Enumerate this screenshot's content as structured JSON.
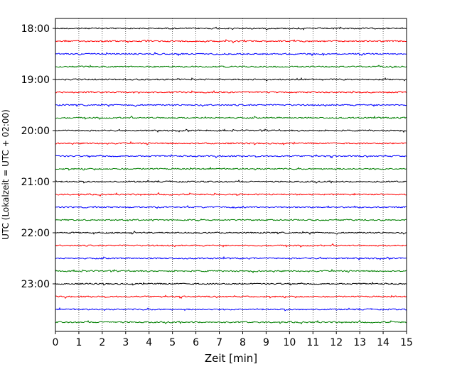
{
  "chart_data": {
    "type": "line",
    "title": "",
    "xlabel": "Zeit  [min]",
    "ylabel": "UTC (Lokalzeit = UTC + 02:00)",
    "xlim": [
      0,
      15
    ],
    "x_ticks": [
      0,
      1,
      2,
      3,
      4,
      5,
      6,
      7,
      8,
      9,
      10,
      11,
      12,
      13,
      14,
      15
    ],
    "y_tick_labels": [
      "18:00",
      "19:00",
      "20:00",
      "21:00",
      "22:00",
      "23:00"
    ],
    "x_grid": "dotted vertical lines at every minute",
    "y_grid": false,
    "legend": "none",
    "trace_colors": [
      "#000000",
      "#ff0000",
      "#0000ff",
      "#007f00"
    ],
    "traces": [
      {
        "start": "18:00"
      },
      {
        "start": "18:15"
      },
      {
        "start": "18:30"
      },
      {
        "start": "18:45"
      },
      {
        "start": "19:00"
      },
      {
        "start": "19:15"
      },
      {
        "start": "19:30"
      },
      {
        "start": "19:45"
      },
      {
        "start": "20:00"
      },
      {
        "start": "20:15"
      },
      {
        "start": "20:30"
      },
      {
        "start": "20:45"
      },
      {
        "start": "21:00"
      },
      {
        "start": "21:15"
      },
      {
        "start": "21:30"
      },
      {
        "start": "21:45"
      },
      {
        "start": "22:00"
      },
      {
        "start": "22:15"
      },
      {
        "start": "22:30"
      },
      {
        "start": "22:45"
      },
      {
        "start": "23:00"
      },
      {
        "start": "23:15"
      },
      {
        "start": "23:30"
      },
      {
        "start": "23:45"
      }
    ]
  }
}
